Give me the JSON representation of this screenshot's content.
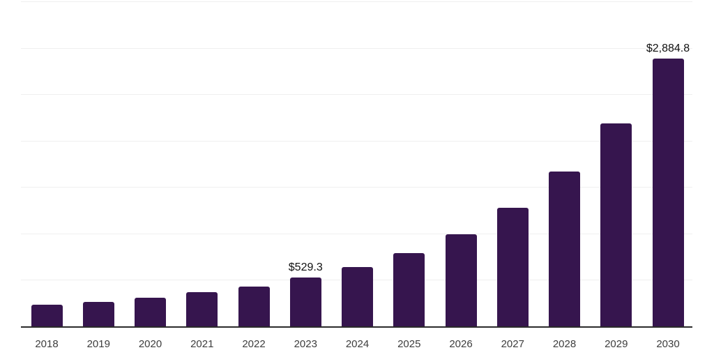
{
  "chart": {
    "background_color": "#ffffff",
    "bar_color": "#36154e",
    "grid_color": "#efefef",
    "axis_color": "#2b2b2b",
    "tick_label_color": "#3d3d3d",
    "value_label_color": "#101010"
  },
  "chart_data": {
    "type": "bar",
    "title": "",
    "xlabel": "",
    "ylabel": "",
    "categories": [
      "2018",
      "2019",
      "2020",
      "2021",
      "2022",
      "2023",
      "2024",
      "2025",
      "2026",
      "2027",
      "2028",
      "2029",
      "2030"
    ],
    "values": [
      230,
      265,
      310,
      365,
      430,
      529.3,
      635,
      790,
      995,
      1280,
      1670,
      2185,
      2884.8
    ],
    "annotations": [
      {
        "category": "2023",
        "text": "$529.3"
      },
      {
        "category": "2030",
        "text": "$2,884.8"
      }
    ],
    "ylim": [
      0,
      3500
    ],
    "gridline_step": 500,
    "grid": true,
    "y_tick_labels_visible": false,
    "legend": false
  }
}
